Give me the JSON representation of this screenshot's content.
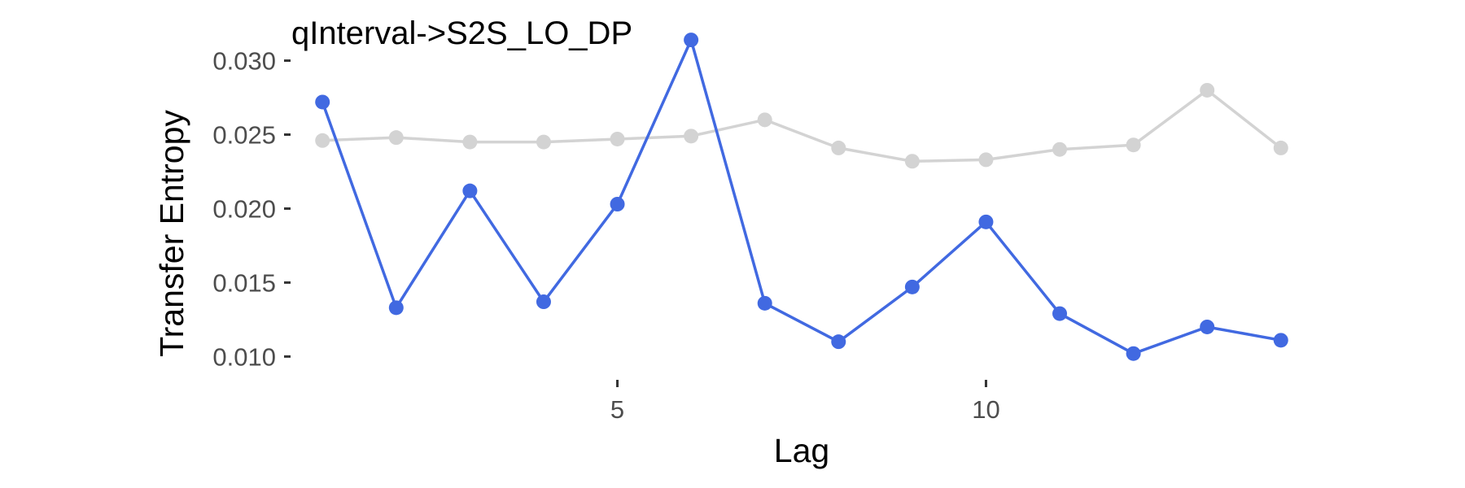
{
  "chart_data": {
    "type": "line",
    "title": "qInterval->S2S_LO_DP",
    "xlabel": "Lag",
    "ylabel": "Transfer Entropy",
    "xlim": [
      0.6,
      14.4
    ],
    "ylim": [
      0.0087,
      0.0319
    ],
    "xticks": [
      5,
      10
    ],
    "xtick_labels": [
      "5",
      "10"
    ],
    "yticks": [
      0.01,
      0.015,
      0.02,
      0.025,
      0.03
    ],
    "ytick_labels": [
      "0.010",
      "0.015",
      "0.020",
      "0.025",
      "0.030"
    ],
    "grid": false,
    "legend": "none",
    "x": [
      1,
      2,
      3,
      4,
      5,
      6,
      7,
      8,
      9,
      10,
      11,
      12,
      13,
      14
    ],
    "series": [
      {
        "color": "#d3d3d3",
        "values": [
          0.0246,
          0.0248,
          0.0245,
          0.0245,
          0.0247,
          0.0249,
          0.026,
          0.0241,
          0.0232,
          0.0233,
          0.024,
          0.0243,
          0.028,
          0.0241
        ]
      },
      {
        "color": "#4169e1",
        "values": [
          0.0272,
          0.0133,
          0.0212,
          0.0137,
          0.0203,
          0.0314,
          0.0136,
          0.011,
          0.0147,
          0.0191,
          0.0129,
          0.0102,
          0.012,
          0.0111
        ]
      }
    ]
  }
}
